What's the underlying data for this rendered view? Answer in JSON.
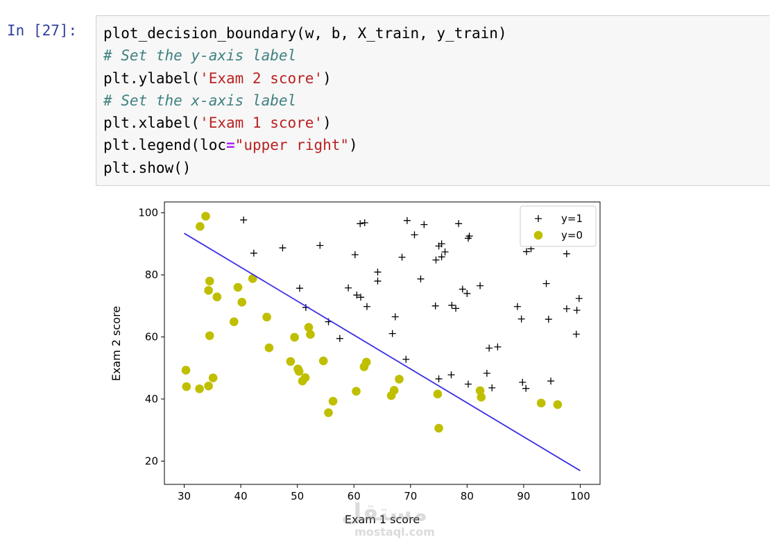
{
  "prompt": "In [27]:",
  "code_lines": [
    [
      {
        "t": "plot_decision_boundary(w, b, X_train, y_train)",
        "c": "pl"
      }
    ],
    [
      {
        "t": "# Set the y-axis label",
        "c": "cm"
      }
    ],
    [
      {
        "t": "plt.ylabel(",
        "c": "pl"
      },
      {
        "t": "'Exam 2 score'",
        "c": "st"
      },
      {
        "t": ")",
        "c": "pl"
      }
    ],
    [
      {
        "t": "# Set the x-axis label",
        "c": "cm"
      }
    ],
    [
      {
        "t": "plt.xlabel(",
        "c": "pl"
      },
      {
        "t": "'Exam 1 score'",
        "c": "st"
      },
      {
        "t": ")",
        "c": "pl"
      }
    ],
    [
      {
        "t": "plt.legend(loc",
        "c": "pl"
      },
      {
        "t": "=",
        "c": "op"
      },
      {
        "t": "\"upper right\"",
        "c": "st"
      },
      {
        "t": ")",
        "c": "pl"
      }
    ],
    [
      {
        "t": "plt.show()",
        "c": "pl"
      }
    ]
  ],
  "watermark": {
    "arabic": "مستقل",
    "latin": "mostaql.com"
  },
  "chart_data": {
    "type": "scatter",
    "xlabel": "Exam 1 score",
    "ylabel": "Exam 2 score",
    "xlim": [
      26.5,
      103.5
    ],
    "ylim": [
      12.5,
      103.5
    ],
    "xticks": [
      30,
      40,
      50,
      60,
      70,
      80,
      90,
      100
    ],
    "yticks": [
      20,
      40,
      60,
      80,
      100
    ],
    "legend": "upper right",
    "grid": false,
    "series": [
      {
        "name": "y=1",
        "marker": "plus",
        "color": "#000000",
        "points": [
          [
            40.5,
            97.7
          ],
          [
            42.3,
            87.0
          ],
          [
            47.4,
            88.7
          ],
          [
            50.4,
            75.7
          ],
          [
            51.5,
            69.5
          ],
          [
            54.0,
            89.5
          ],
          [
            55.5,
            64.9
          ],
          [
            57.5,
            59.5
          ],
          [
            59.0,
            75.8
          ],
          [
            60.2,
            86.5
          ],
          [
            60.5,
            73.5
          ],
          [
            61.2,
            72.8
          ],
          [
            61.1,
            96.5
          ],
          [
            61.9,
            96.8
          ],
          [
            62.3,
            69.8
          ],
          [
            64.2,
            78.0
          ],
          [
            64.2,
            80.9
          ],
          [
            66.8,
            61.1
          ],
          [
            67.3,
            66.5
          ],
          [
            68.5,
            85.7
          ],
          [
            69.4,
            97.5
          ],
          [
            69.2,
            52.8
          ],
          [
            70.7,
            92.9
          ],
          [
            71.8,
            78.7
          ],
          [
            72.4,
            96.2
          ],
          [
            74.4,
            70.0
          ],
          [
            74.5,
            84.8
          ],
          [
            75.0,
            89.3
          ],
          [
            75.5,
            85.8
          ],
          [
            75.5,
            90.0
          ],
          [
            76.1,
            87.4
          ],
          [
            75.0,
            46.5
          ],
          [
            77.2,
            47.8
          ],
          [
            77.3,
            70.2
          ],
          [
            78.0,
            69.2
          ],
          [
            78.5,
            96.5
          ],
          [
            79.2,
            75.4
          ],
          [
            80.0,
            74.0
          ],
          [
            80.2,
            91.8
          ],
          [
            80.4,
            92.5
          ],
          [
            80.2,
            44.8
          ],
          [
            82.3,
            76.5
          ],
          [
            83.5,
            48.3
          ],
          [
            83.9,
            56.4
          ],
          [
            84.4,
            43.6
          ],
          [
            85.4,
            56.8
          ],
          [
            88.9,
            69.8
          ],
          [
            89.6,
            65.8
          ],
          [
            89.8,
            45.4
          ],
          [
            90.4,
            43.4
          ],
          [
            90.5,
            87.5
          ],
          [
            91.3,
            88.4
          ],
          [
            94.0,
            77.2
          ],
          [
            94.4,
            65.7
          ],
          [
            94.8,
            45.8
          ],
          [
            97.6,
            86.8
          ],
          [
            97.6,
            69.1
          ],
          [
            99.3,
            60.9
          ],
          [
            99.4,
            68.6
          ],
          [
            99.8,
            72.4
          ]
        ]
      },
      {
        "name": "y=0",
        "marker": "circle",
        "color": "#bfbf00",
        "points": [
          [
            30.3,
            49.3
          ],
          [
            30.4,
            44.0
          ],
          [
            32.7,
            43.3
          ],
          [
            32.8,
            95.6
          ],
          [
            33.8,
            98.9
          ],
          [
            34.3,
            75.0
          ],
          [
            34.3,
            44.2
          ],
          [
            34.5,
            60.4
          ],
          [
            34.5,
            78.0
          ],
          [
            35.1,
            46.8
          ],
          [
            35.8,
            72.9
          ],
          [
            38.8,
            64.9
          ],
          [
            39.5,
            76.0
          ],
          [
            40.2,
            71.2
          ],
          [
            42.1,
            78.8
          ],
          [
            44.6,
            66.4
          ],
          [
            45.0,
            56.5
          ],
          [
            48.8,
            52.1
          ],
          [
            49.5,
            59.9
          ],
          [
            50.1,
            49.7
          ],
          [
            50.3,
            48.9
          ],
          [
            50.9,
            45.8
          ],
          [
            51.4,
            46.9
          ],
          [
            52.0,
            63.1
          ],
          [
            52.3,
            60.8
          ],
          [
            54.6,
            52.3
          ],
          [
            55.5,
            35.6
          ],
          [
            56.3,
            39.3
          ],
          [
            60.4,
            42.5
          ],
          [
            61.8,
            50.4
          ],
          [
            62.2,
            51.9
          ],
          [
            66.6,
            41.1
          ],
          [
            67.1,
            42.8
          ],
          [
            68.0,
            46.4
          ],
          [
            74.8,
            41.6
          ],
          [
            75.0,
            30.6
          ],
          [
            82.3,
            42.7
          ],
          [
            82.5,
            40.6
          ],
          [
            93.1,
            38.7
          ],
          [
            96.0,
            38.2
          ]
        ]
      }
    ],
    "boundary_line": {
      "color": "#3a2ee6",
      "x": [
        30.0,
        100.0
      ],
      "y": [
        93.4,
        16.9
      ]
    }
  }
}
